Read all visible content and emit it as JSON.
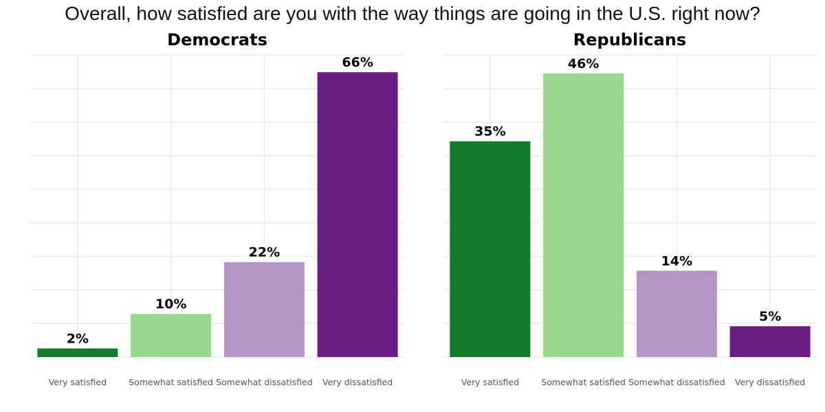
{
  "title": "Overall, how satisfied are you with the way things are going in the U.S. right now?",
  "chart_data": [
    {
      "type": "bar",
      "title": "Democrats",
      "categories": [
        "Very satisfied",
        "Somewhat satisfied",
        "Somewhat dissatisfied",
        "Very dissatisfied"
      ],
      "values": [
        2,
        10,
        22,
        66
      ],
      "data_labels": [
        "2%",
        "10%",
        "22%",
        "66%"
      ],
      "colors": [
        "#137a2e",
        "#98d78e",
        "#b594c6",
        "#6a1d82"
      ],
      "ylim": [
        0,
        70
      ],
      "grid": true,
      "xlabel": "",
      "ylabel": ""
    },
    {
      "type": "bar",
      "title": "Republicans",
      "categories": [
        "Very satisfied",
        "Somewhat satisfied",
        "Somewhat dissatisfied",
        "Very dissatisfied"
      ],
      "values": [
        35,
        46,
        14,
        5
      ],
      "data_labels": [
        "35%",
        "46%",
        "14%",
        "5%"
      ],
      "colors": [
        "#137a2e",
        "#98d78e",
        "#b594c6",
        "#6a1d82"
      ],
      "ylim": [
        0,
        49
      ],
      "grid": true,
      "xlabel": "",
      "ylabel": ""
    }
  ]
}
